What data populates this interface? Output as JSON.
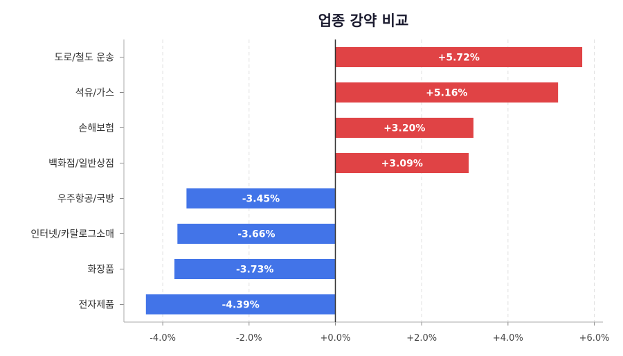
{
  "chart_data": {
    "type": "bar",
    "orientation": "horizontal",
    "title": "업종 강약 비교",
    "categories": [
      "도로/철도 운송",
      "석유/가스",
      "손해보험",
      "백화점/일반상점",
      "우주항공/국방",
      "인터넷/카탈로그소매",
      "화장품",
      "전자제품"
    ],
    "values": [
      5.72,
      5.16,
      3.2,
      3.09,
      -3.45,
      -3.66,
      -3.73,
      -4.39
    ],
    "value_labels": [
      "+5.72%",
      "+5.16%",
      "+3.20%",
      "+3.09%",
      "-3.45%",
      "-3.66%",
      "-3.73%",
      "-4.39%"
    ],
    "xlim": [
      -4.9,
      6.2
    ],
    "xticks": [
      -4,
      -2,
      0,
      2,
      4,
      6
    ],
    "xtick_labels": [
      "-4.0%",
      "-2.0%",
      "+0.0%",
      "+2.0%",
      "+4.0%",
      "+6.0%"
    ],
    "grid": "vertical-dashed",
    "colors": {
      "positive": "#e04345",
      "negative": "#4274e8",
      "zero_line": "#333333",
      "grid": "#e0e0e0",
      "axis": "#aaaaaa"
    }
  }
}
